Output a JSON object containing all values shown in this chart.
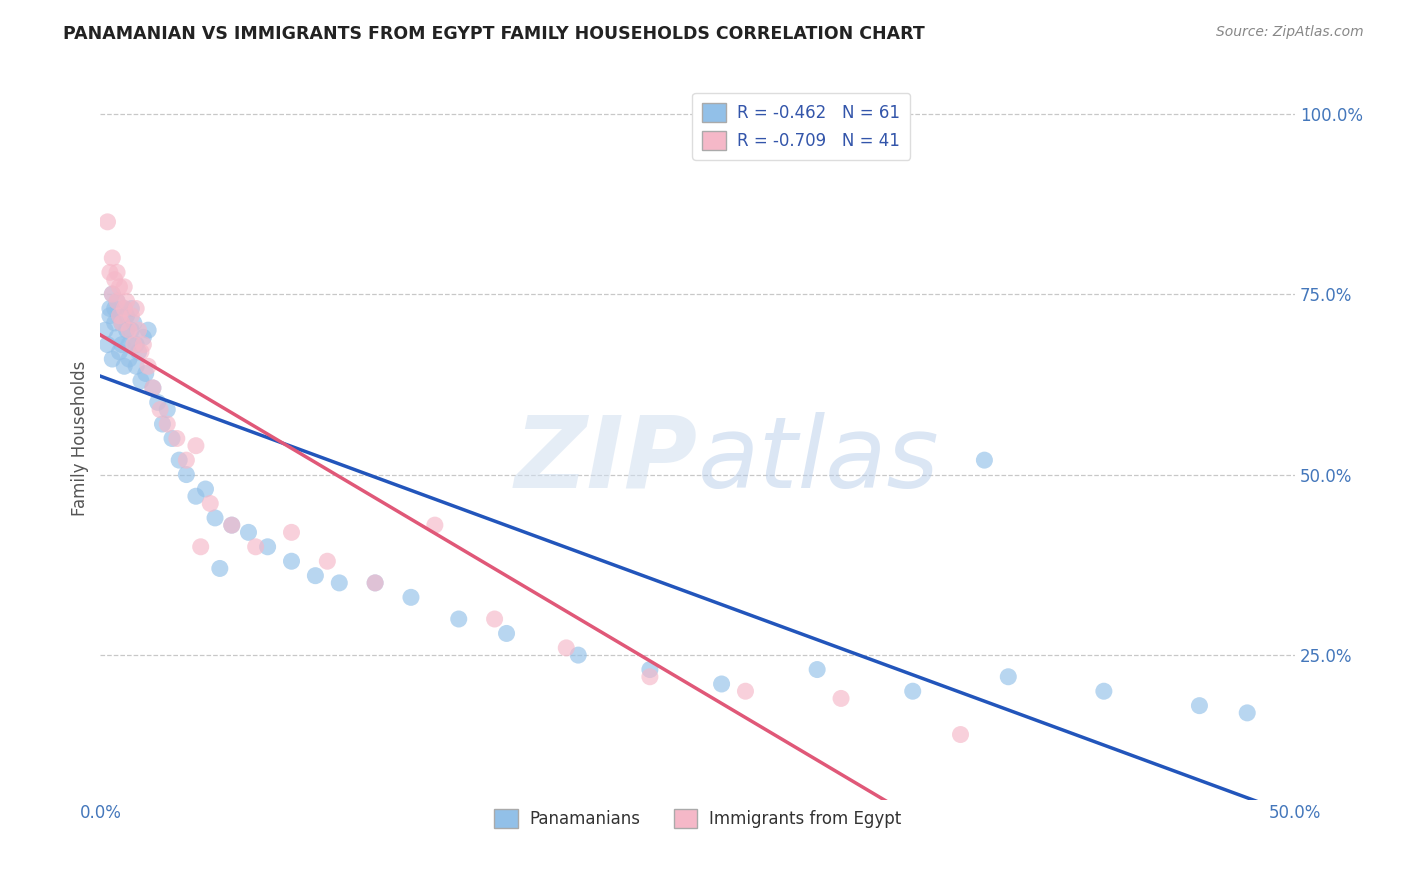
{
  "title": "PANAMANIAN VS IMMIGRANTS FROM EGYPT FAMILY HOUSEHOLDS CORRELATION CHART",
  "source": "Source: ZipAtlas.com",
  "ylabel_label": "Family Households",
  "xlim": [
    0.0,
    0.5
  ],
  "ylim": [
    0.05,
    1.05
  ],
  "xticks": [
    0.0,
    0.1,
    0.2,
    0.3,
    0.4,
    0.5
  ],
  "xtick_labels": [
    "0.0%",
    "",
    "",
    "",
    "",
    "50.0%"
  ],
  "yticks": [
    0.25,
    0.5,
    0.75,
    1.0
  ],
  "ytick_labels": [
    "25.0%",
    "50.0%",
    "75.0%",
    "100.0%"
  ],
  "blue_R": -0.462,
  "blue_N": 61,
  "pink_R": -0.709,
  "pink_N": 41,
  "blue_color": "#92c0e8",
  "pink_color": "#f5b8c8",
  "blue_line_color": "#2255bb",
  "pink_line_color": "#e05878",
  "legend_label_blue": "Panamanians",
  "legend_label_pink": "Immigrants from Egypt",
  "watermark": "ZIPatlas",
  "background_color": "#ffffff",
  "grid_color": "#bbbbbb",
  "title_color": "#222222",
  "tick_label_color": "#4477bb",
  "blue_x": [
    0.002,
    0.003,
    0.004,
    0.004,
    0.005,
    0.005,
    0.006,
    0.006,
    0.007,
    0.007,
    0.008,
    0.008,
    0.009,
    0.009,
    0.01,
    0.01,
    0.011,
    0.011,
    0.012,
    0.012,
    0.013,
    0.013,
    0.014,
    0.015,
    0.015,
    0.016,
    0.017,
    0.018,
    0.019,
    0.02,
    0.022,
    0.024,
    0.026,
    0.028,
    0.03,
    0.033,
    0.036,
    0.04,
    0.044,
    0.048,
    0.055,
    0.062,
    0.07,
    0.08,
    0.09,
    0.1,
    0.115,
    0.13,
    0.15,
    0.17,
    0.2,
    0.23,
    0.26,
    0.3,
    0.34,
    0.38,
    0.42,
    0.46,
    0.48,
    0.37,
    0.05
  ],
  "blue_y": [
    0.7,
    0.68,
    0.72,
    0.73,
    0.66,
    0.75,
    0.71,
    0.73,
    0.69,
    0.74,
    0.72,
    0.67,
    0.71,
    0.68,
    0.73,
    0.65,
    0.7,
    0.72,
    0.68,
    0.66,
    0.73,
    0.7,
    0.71,
    0.68,
    0.65,
    0.67,
    0.63,
    0.69,
    0.64,
    0.7,
    0.62,
    0.6,
    0.57,
    0.59,
    0.55,
    0.52,
    0.5,
    0.47,
    0.48,
    0.44,
    0.43,
    0.42,
    0.4,
    0.38,
    0.36,
    0.35,
    0.35,
    0.33,
    0.3,
    0.28,
    0.25,
    0.23,
    0.21,
    0.23,
    0.2,
    0.22,
    0.2,
    0.18,
    0.17,
    0.52,
    0.37
  ],
  "pink_x": [
    0.003,
    0.004,
    0.005,
    0.005,
    0.006,
    0.007,
    0.007,
    0.008,
    0.008,
    0.009,
    0.01,
    0.01,
    0.011,
    0.012,
    0.013,
    0.014,
    0.015,
    0.016,
    0.017,
    0.018,
    0.02,
    0.022,
    0.025,
    0.028,
    0.032,
    0.036,
    0.04,
    0.046,
    0.055,
    0.065,
    0.08,
    0.095,
    0.115,
    0.14,
    0.165,
    0.195,
    0.23,
    0.27,
    0.31,
    0.36,
    0.042
  ],
  "pink_y": [
    0.85,
    0.78,
    0.8,
    0.75,
    0.77,
    0.74,
    0.78,
    0.72,
    0.76,
    0.71,
    0.76,
    0.73,
    0.74,
    0.7,
    0.72,
    0.68,
    0.73,
    0.7,
    0.67,
    0.68,
    0.65,
    0.62,
    0.59,
    0.57,
    0.55,
    0.52,
    0.54,
    0.46,
    0.43,
    0.4,
    0.42,
    0.38,
    0.35,
    0.43,
    0.3,
    0.26,
    0.22,
    0.2,
    0.19,
    0.14,
    0.4
  ]
}
